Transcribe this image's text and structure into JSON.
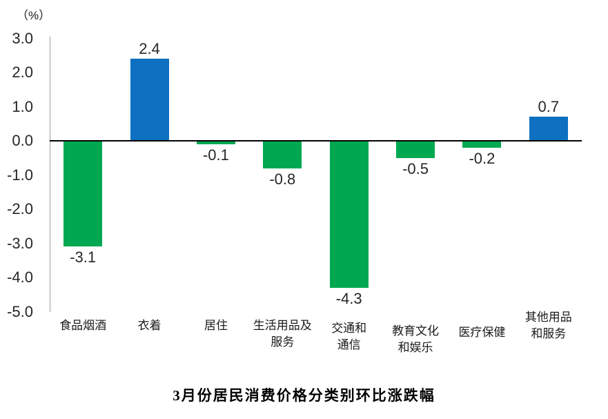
{
  "chart_data": {
    "type": "bar",
    "title": "3月份居民消费价格分类别环比涨跌幅",
    "unit_label": "（%）",
    "categories": [
      "食品烟酒",
      "衣着",
      "居住",
      "生活用品及\n服务",
      "交通和\n通信",
      "教育文化\n和娱乐",
      "医疗保健",
      "其他用品\n和服务"
    ],
    "values": [
      -3.1,
      2.4,
      -0.1,
      -0.8,
      -4.3,
      -0.5,
      -0.2,
      0.7
    ],
    "value_labels": [
      "-3.1",
      "2.4",
      "-0.1",
      "-0.8",
      "-4.3",
      "-0.5",
      "-0.2",
      "0.7"
    ],
    "ylim": [
      -5.0,
      3.0
    ],
    "ytick_step": 1.0,
    "ytick_labels": [
      "3.0",
      "2.0",
      "1.0",
      "0.0",
      "-1.0",
      "-2.0",
      "-3.0",
      "-4.0",
      "-5.0"
    ],
    "xlabel": "",
    "ylabel": "（%）",
    "grid": false,
    "legend_position": "none",
    "colors": {
      "positive": "#0d70c0",
      "negative": "#00a851",
      "axis_line": "#9e9e9e",
      "zero_line": "#000000",
      "text": "#262626"
    }
  }
}
